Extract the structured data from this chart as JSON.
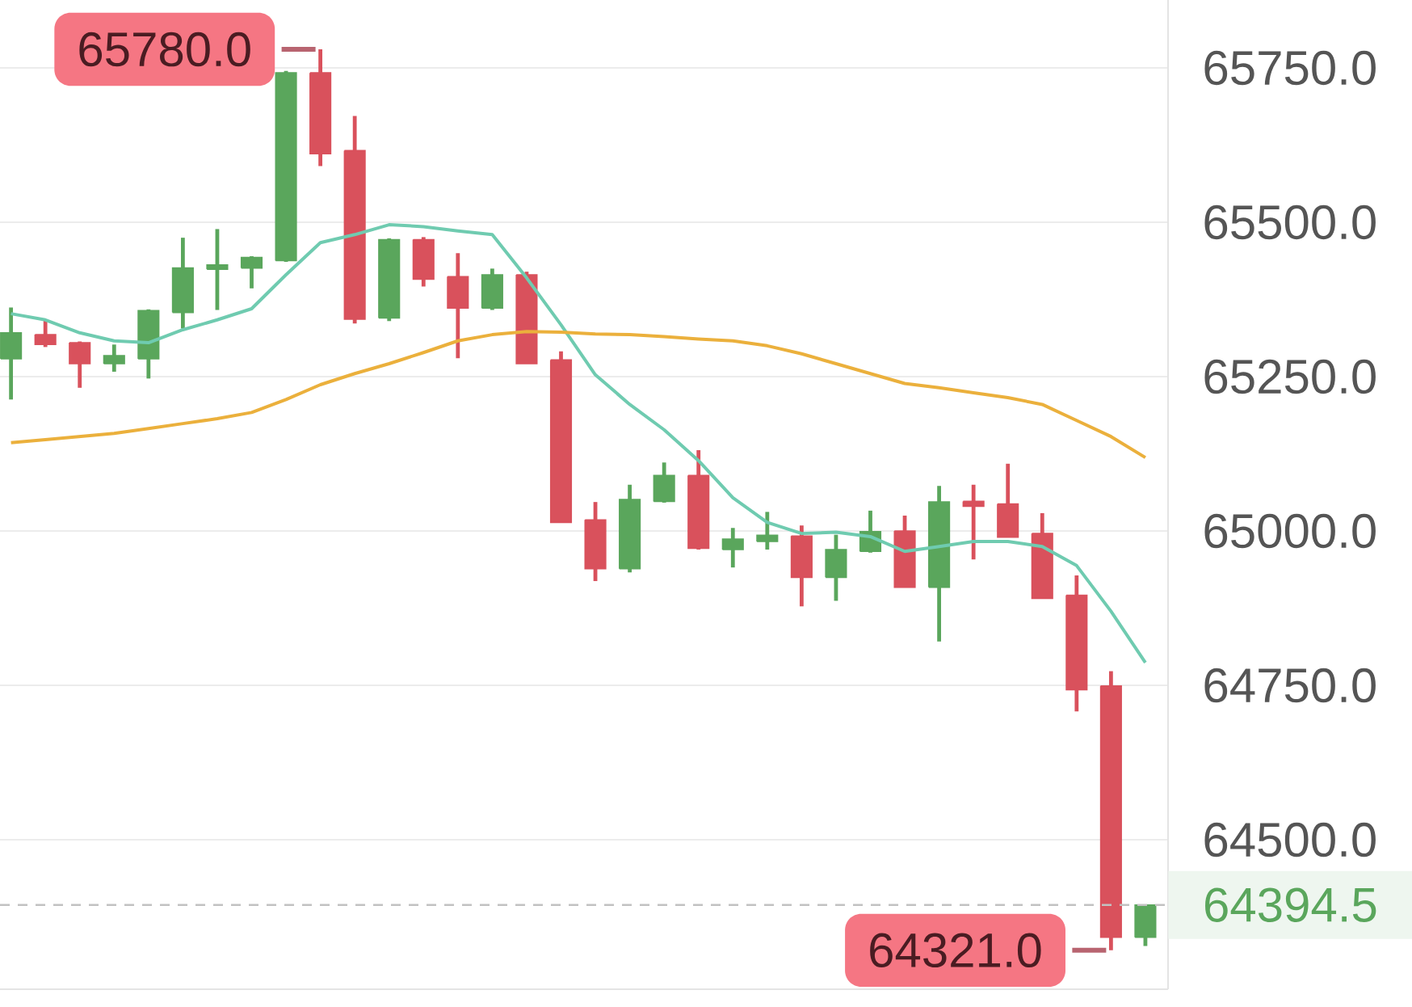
{
  "chart_data": {
    "type": "candlestick",
    "categories": [
      null,
      null,
      null,
      null,
      null,
      null,
      null,
      null,
      null,
      null,
      null,
      null,
      null,
      null,
      null,
      null,
      null,
      null,
      null,
      null,
      null,
      null,
      null,
      null,
      null,
      null,
      null,
      null,
      null,
      null,
      null,
      null,
      null,
      null
    ],
    "ohlc": [
      [
        65279,
        65362,
        65213,
        65321
      ],
      [
        65318,
        65342,
        65298,
        65302
      ],
      [
        65305,
        65307,
        65232,
        65271
      ],
      [
        65271,
        65302,
        65258,
        65284
      ],
      [
        65279,
        65359,
        65247,
        65357
      ],
      [
        65354,
        65475,
        65328,
        65426
      ],
      [
        65424,
        65489,
        65358,
        65431
      ],
      [
        65426,
        65445,
        65393,
        65443
      ],
      [
        65438,
        65745,
        65436,
        65742
      ],
      [
        65742,
        65780,
        65591,
        65611
      ],
      [
        65616,
        65672,
        65336,
        65343
      ],
      [
        65345,
        65474,
        65340,
        65472
      ],
      [
        65472,
        65476,
        65396,
        65408
      ],
      [
        65412,
        65450,
        65280,
        65361
      ],
      [
        65361,
        65425,
        65358,
        65415
      ],
      [
        65415,
        65420,
        65271,
        65271
      ],
      [
        65277,
        65291,
        65014,
        65014
      ],
      [
        65018,
        65047,
        64919,
        64939
      ],
      [
        64939,
        65075,
        64933,
        65051
      ],
      [
        65048,
        65111,
        65046,
        65090
      ],
      [
        65090,
        65131,
        64970,
        64972
      ],
      [
        64970,
        65005,
        64941,
        64987
      ],
      [
        64983,
        65031,
        64970,
        64993
      ],
      [
        64992,
        65009,
        64878,
        64925
      ],
      [
        64925,
        64994,
        64887,
        64970
      ],
      [
        64967,
        65033,
        64965,
        64999
      ],
      [
        65000,
        65025,
        64909,
        64909
      ],
      [
        64909,
        65073,
        64821,
        65047
      ],
      [
        65048,
        65075,
        64954,
        65040
      ],
      [
        65044,
        65109,
        64990,
        64990
      ],
      [
        64996,
        65029,
        64891,
        64891
      ],
      [
        64896,
        64928,
        64708,
        64743
      ],
      [
        64749,
        64773,
        64321,
        64342
      ],
      [
        64342,
        64394.5,
        64328,
        64394.5
      ]
    ],
    "colors": [
      "#5aa65c",
      "#d9515c",
      "#d9515c",
      "#5aa65c",
      "#5aa65c",
      "#5aa65c",
      "#5aa65c",
      "#5aa65c",
      "#5aa65c",
      "#d9515c",
      "#d9515c",
      "#5aa65c",
      "#d9515c",
      "#d9515c",
      "#5aa65c",
      "#d9515c",
      "#d9515c",
      "#d9515c",
      "#5aa65c",
      "#5aa65c",
      "#d9515c",
      "#5aa65c",
      "#5aa65c",
      "#d9515c",
      "#5aa65c",
      "#5aa65c",
      "#d9515c",
      "#5aa65c",
      "#d9515c",
      "#d9515c",
      "#d9515c",
      "#d9515c",
      "#d9515c",
      "#5aa65c"
    ],
    "series": [
      {
        "type": "line",
        "color": "#6fcbb0",
        "values": [
          65352,
          65342,
          65321,
          65308,
          65305,
          65326,
          65342,
          65360,
          65415,
          65467,
          65480,
          65496,
          65493,
          65486,
          65480,
          65410,
          65334,
          65253,
          65205,
          65164,
          65114,
          65054,
          65014,
          64996,
          64998,
          64991,
          64967,
          64975,
          64983,
          64983,
          64975,
          64944,
          64870,
          64787
        ]
      },
      {
        "type": "line",
        "color": "#ebb03c",
        "values": [
          65143,
          65148,
          65153,
          65158,
          65166,
          65174,
          65182,
          65192,
          65213,
          65237,
          65255,
          65271,
          65289,
          65308,
          65318,
          65323,
          65322,
          65319,
          65318,
          65315,
          65311,
          65308,
          65300,
          65287,
          65271,
          65255,
          65239,
          65232,
          65224,
          65216,
          65205,
          65179,
          65153,
          65119
        ]
      }
    ],
    "ylim": [
      64258,
      65860
    ],
    "yticks": [
      {
        "value": 64500,
        "label": "64500.0"
      },
      {
        "value": 64750,
        "label": "64750.0"
      },
      {
        "value": 65000,
        "label": "65000.0"
      },
      {
        "value": 65250,
        "label": "65250.0"
      },
      {
        "value": 65500,
        "label": "65500.0"
      },
      {
        "value": 65750,
        "label": "65750.0"
      }
    ],
    "grid": "y",
    "tick_labels": "y",
    "ref_lines": [
      {
        "axis": "y",
        "value": 64394.5,
        "label": "64394.5",
        "color": "#c2c2c2",
        "line_style": "dashed"
      }
    ],
    "annotations": [
      "65780.0",
      "64321.0"
    ]
  }
}
